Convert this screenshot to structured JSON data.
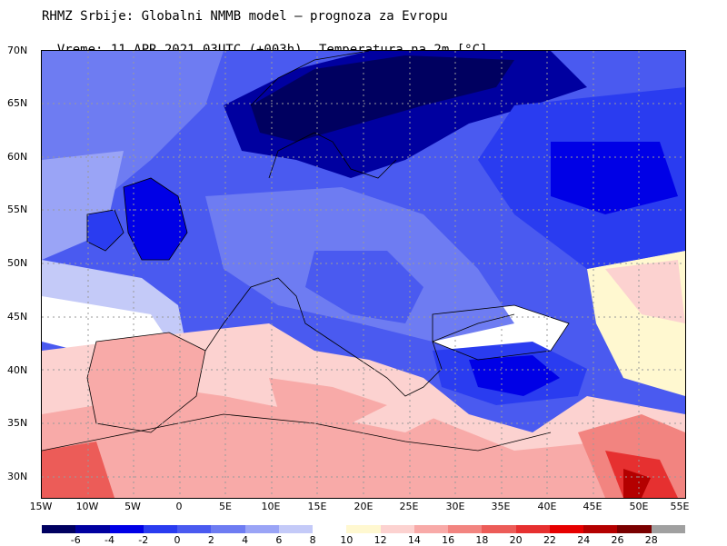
{
  "header": {
    "line1": "RHMZ Srbije: Globalni NMMB model — prognoza za Evropu",
    "time": "Vreme: 11 APR 2021 03UTC (+003h)",
    "parameter": "Temperatura na 2m [°C]"
  },
  "axes": {
    "lat_labels": [
      "70N",
      "65N",
      "60N",
      "55N",
      "50N",
      "45N",
      "40N",
      "35N",
      "30N"
    ],
    "lon_labels": [
      "15W",
      "10W",
      "5W",
      "0",
      "5E",
      "10E",
      "15E",
      "20E",
      "25E",
      "30E",
      "35E",
      "40E",
      "45E",
      "50E",
      "55E"
    ]
  },
  "legend": {
    "labels": [
      "-6",
      "-4",
      "-2",
      "0",
      "2",
      "4",
      "6",
      "8",
      "10",
      "12",
      "14",
      "16",
      "18",
      "20",
      "22",
      "24",
      "26",
      "28"
    ],
    "colors": [
      "#000060",
      "#0000a0",
      "#0000e6",
      "#2a3cf0",
      "#4a5af0",
      "#6e7cf2",
      "#9aa4f6",
      "#c4caf8",
      "#ffffff",
      "#fff8d0",
      "#fcd2d0",
      "#f8aaa8",
      "#f28480",
      "#ec5c58",
      "#e63030",
      "#e60000",
      "#b40000",
      "#7a0000",
      "#a0a0a0"
    ]
  },
  "map": {
    "projection": "lat-lon",
    "lat_range": [
      "28N",
      "70N"
    ],
    "lon_range": [
      "15W",
      "55E"
    ],
    "grid": "dotted"
  }
}
